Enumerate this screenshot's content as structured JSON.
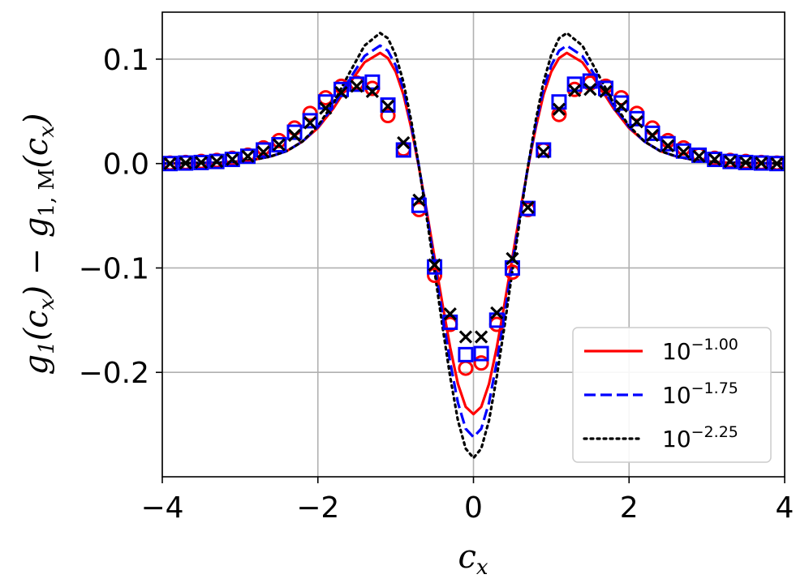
{
  "chart_data": {
    "type": "line",
    "xlabel": "c_x",
    "ylabel": "g_1(c_x) − g_{1,M}(c_x)",
    "xlim": [
      -4,
      4
    ],
    "ylim": [
      -0.3,
      0.145
    ],
    "xticks": [
      -4,
      -2,
      0,
      2,
      4
    ],
    "xtick_labels": [
      "−4",
      "−2",
      "0",
      "2",
      "4"
    ],
    "yticks": [
      0.1,
      0.0,
      -0.1,
      -0.2
    ],
    "ytick_labels": [
      "0.1",
      "0.0",
      "−0.1",
      "−0.2"
    ],
    "grid": true,
    "legend_position": "bottom-right",
    "series": [
      {
        "name": "10^{-1.00}",
        "legend_base": "10",
        "legend_exp": "−1.00",
        "color": "#ff0000",
        "line_style": "solid",
        "line": {
          "x": [
            -4.0,
            -3.6,
            -3.2,
            -3.0,
            -2.8,
            -2.6,
            -2.4,
            -2.2,
            -2.0,
            -1.8,
            -1.6,
            -1.4,
            -1.2,
            -1.1,
            -1.0,
            -0.9,
            -0.8,
            -0.7,
            -0.6,
            -0.5,
            -0.4,
            -0.3,
            -0.2,
            -0.1,
            0.0,
            0.1,
            0.2,
            0.3,
            0.4,
            0.5,
            0.6,
            0.7,
            0.8,
            0.9,
            1.0,
            1.1,
            1.2,
            1.4,
            1.6,
            1.8,
            2.0,
            2.2,
            2.4,
            2.6,
            2.8,
            3.0,
            3.2,
            3.6,
            4.0
          ],
          "y": [
            0.0,
            0.0005,
            0.001,
            0.002,
            0.004,
            0.007,
            0.012,
            0.021,
            0.034,
            0.053,
            0.076,
            0.097,
            0.106,
            0.101,
            0.088,
            0.066,
            0.034,
            -0.004,
            -0.046,
            -0.09,
            -0.134,
            -0.176,
            -0.211,
            -0.233,
            -0.24,
            -0.233,
            -0.211,
            -0.176,
            -0.134,
            -0.09,
            -0.046,
            -0.004,
            0.034,
            0.066,
            0.088,
            0.101,
            0.106,
            0.097,
            0.076,
            0.053,
            0.034,
            0.021,
            0.012,
            0.007,
            0.004,
            0.002,
            0.001,
            0.0005,
            0.0
          ]
        },
        "markers": {
          "symbol": "circle",
          "x": [
            -3.9,
            -3.7,
            -3.5,
            -3.3,
            -3.1,
            -2.9,
            -2.7,
            -2.5,
            -2.3,
            -2.1,
            -1.9,
            -1.7,
            -1.5,
            -1.3,
            -1.1,
            -0.9,
            -0.7,
            -0.5,
            -0.3,
            -0.1,
            0.1,
            0.3,
            0.5,
            0.7,
            0.9,
            1.1,
            1.3,
            1.5,
            1.7,
            1.9,
            2.1,
            2.3,
            2.5,
            2.7,
            2.9,
            3.1,
            3.3,
            3.5,
            3.7,
            3.9
          ],
          "y": [
            0.0005,
            0.001,
            0.002,
            0.003,
            0.005,
            0.008,
            0.015,
            0.022,
            0.034,
            0.048,
            0.063,
            0.074,
            0.077,
            0.072,
            0.046,
            0.014,
            -0.044,
            -0.107,
            -0.154,
            -0.196,
            -0.191,
            -0.154,
            -0.104,
            -0.044,
            0.013,
            0.047,
            0.071,
            0.077,
            0.074,
            0.063,
            0.048,
            0.034,
            0.022,
            0.015,
            0.008,
            0.005,
            0.003,
            0.002,
            0.001,
            0.0005
          ]
        }
      },
      {
        "name": "10^{-1.75}",
        "legend_base": "10",
        "legend_exp": "−1.75",
        "color": "#0000ff",
        "line_style": "dashed",
        "line": {
          "x": [
            -4.0,
            -3.6,
            -3.2,
            -3.0,
            -2.8,
            -2.6,
            -2.4,
            -2.2,
            -2.0,
            -1.8,
            -1.6,
            -1.4,
            -1.2,
            -1.1,
            -1.0,
            -0.9,
            -0.8,
            -0.7,
            -0.6,
            -0.5,
            -0.4,
            -0.3,
            -0.2,
            -0.1,
            0.0,
            0.1,
            0.2,
            0.3,
            0.4,
            0.5,
            0.6,
            0.7,
            0.8,
            0.9,
            1.0,
            1.1,
            1.2,
            1.4,
            1.6,
            1.8,
            2.0,
            2.2,
            2.4,
            2.6,
            2.8,
            3.0,
            3.2,
            3.6,
            4.0
          ],
          "y": [
            0.0,
            0.0005,
            0.001,
            0.002,
            0.004,
            0.007,
            0.012,
            0.021,
            0.035,
            0.055,
            0.08,
            0.103,
            0.113,
            0.108,
            0.094,
            0.071,
            0.037,
            -0.003,
            -0.048,
            -0.096,
            -0.144,
            -0.19,
            -0.229,
            -0.254,
            -0.262,
            -0.254,
            -0.229,
            -0.19,
            -0.144,
            -0.096,
            -0.048,
            -0.003,
            0.037,
            0.071,
            0.094,
            0.108,
            0.113,
            0.103,
            0.08,
            0.055,
            0.035,
            0.021,
            0.012,
            0.007,
            0.004,
            0.002,
            0.001,
            0.0005,
            0.0
          ]
        },
        "markers": {
          "symbol": "square",
          "x": [
            -3.9,
            -3.7,
            -3.5,
            -3.3,
            -3.1,
            -2.9,
            -2.7,
            -2.5,
            -2.3,
            -2.1,
            -1.9,
            -1.7,
            -1.5,
            -1.3,
            -1.1,
            -0.9,
            -0.7,
            -0.5,
            -0.3,
            -0.1,
            0.1,
            0.3,
            0.5,
            0.7,
            0.9,
            1.1,
            1.3,
            1.5,
            1.7,
            1.9,
            2.1,
            2.3,
            2.5,
            2.7,
            2.9,
            3.1,
            3.3,
            3.5,
            3.7,
            3.9
          ],
          "y": [
            0.0,
            0.0005,
            0.001,
            0.002,
            0.004,
            0.007,
            0.013,
            0.018,
            0.03,
            0.041,
            0.059,
            0.071,
            0.076,
            0.078,
            0.056,
            0.013,
            -0.04,
            -0.099,
            -0.152,
            -0.183,
            -0.182,
            -0.15,
            -0.1,
            -0.043,
            0.013,
            0.059,
            0.076,
            0.079,
            0.072,
            0.058,
            0.043,
            0.029,
            0.019,
            0.012,
            0.008,
            0.004,
            0.002,
            0.001,
            0.0005,
            0.0
          ]
        }
      },
      {
        "name": "10^{-2.25}",
        "legend_base": "10",
        "legend_exp": "−2.25",
        "color": "#000000",
        "line_style": "dotted",
        "line": {
          "x": [
            -4.0,
            -3.6,
            -3.2,
            -3.0,
            -2.8,
            -2.6,
            -2.4,
            -2.2,
            -2.0,
            -1.8,
            -1.6,
            -1.4,
            -1.2,
            -1.1,
            -1.0,
            -0.9,
            -0.8,
            -0.7,
            -0.6,
            -0.5,
            -0.4,
            -0.3,
            -0.2,
            -0.1,
            0.0,
            0.1,
            0.2,
            0.3,
            0.4,
            0.5,
            0.6,
            0.7,
            0.8,
            0.9,
            1.0,
            1.1,
            1.2,
            1.4,
            1.6,
            1.8,
            2.0,
            2.2,
            2.4,
            2.6,
            2.8,
            3.0,
            3.2,
            3.6,
            4.0
          ],
          "y": [
            0.0,
            0.0005,
            0.001,
            0.002,
            0.004,
            0.007,
            0.012,
            0.021,
            0.036,
            0.058,
            0.086,
            0.113,
            0.125,
            0.12,
            0.104,
            0.078,
            0.041,
            -0.003,
            -0.052,
            -0.103,
            -0.155,
            -0.204,
            -0.246,
            -0.273,
            -0.282,
            -0.273,
            -0.246,
            -0.204,
            -0.155,
            -0.103,
            -0.052,
            -0.003,
            0.041,
            0.078,
            0.104,
            0.12,
            0.125,
            0.113,
            0.086,
            0.058,
            0.036,
            0.021,
            0.012,
            0.007,
            0.004,
            0.002,
            0.001,
            0.0005,
            0.0
          ]
        },
        "markers": {
          "symbol": "x",
          "x": [
            -3.9,
            -3.7,
            -3.5,
            -3.3,
            -3.1,
            -2.9,
            -2.7,
            -2.5,
            -2.3,
            -2.1,
            -1.9,
            -1.7,
            -1.5,
            -1.3,
            -1.1,
            -0.9,
            -0.7,
            -0.5,
            -0.3,
            -0.1,
            0.1,
            0.3,
            0.5,
            0.7,
            0.9,
            1.1,
            1.3,
            1.5,
            1.7,
            1.9,
            2.1,
            2.3,
            2.5,
            2.7,
            2.9,
            3.1,
            3.3,
            3.5,
            3.7,
            3.9
          ],
          "y": [
            0.0,
            0.0005,
            0.001,
            0.002,
            0.004,
            0.007,
            0.011,
            0.018,
            0.027,
            0.039,
            0.053,
            0.068,
            0.074,
            0.069,
            0.055,
            0.02,
            -0.035,
            -0.097,
            -0.144,
            -0.166,
            -0.166,
            -0.143,
            -0.091,
            -0.042,
            0.011,
            0.052,
            0.07,
            0.071,
            0.069,
            0.055,
            0.04,
            0.027,
            0.017,
            0.011,
            0.007,
            0.004,
            0.002,
            0.001,
            0.0005,
            0.0
          ]
        }
      }
    ]
  }
}
